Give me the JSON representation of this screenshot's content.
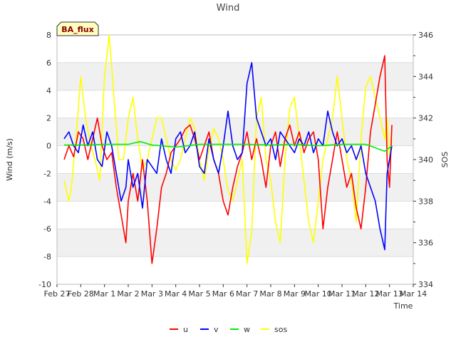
{
  "chart_data": {
    "type": "line",
    "title": "Wind",
    "badge": "BA_flux",
    "xlabel": "Time",
    "ylabel": "Wind (m/s)",
    "y2label": "SOS",
    "x_ticks": [
      "Feb 27",
      "Feb 28",
      "Mar 1",
      "Mar 2",
      "Mar 3",
      "Mar 4",
      "Mar 5",
      "Mar 6",
      "Mar 7",
      "Mar 8",
      "Mar 9",
      "Mar 10",
      "Mar 11",
      "Mar 12",
      "Mar 13",
      "Mar 14"
    ],
    "xlim": [
      0,
      15
    ],
    "ylim": [
      -10,
      8
    ],
    "y_ticks": [
      -10,
      -8,
      -6,
      -4,
      -2,
      0,
      2,
      4,
      6,
      8
    ],
    "y2lim": [
      334,
      346
    ],
    "y2_ticks": [
      334,
      336,
      338,
      340,
      342,
      344,
      346
    ],
    "series": [
      {
        "name": "u",
        "color": "#ff0000",
        "axis": "left",
        "x": [
          0.3,
          0.5,
          0.7,
          0.9,
          1.1,
          1.3,
          1.5,
          1.7,
          1.9,
          2.1,
          2.3,
          2.5,
          2.7,
          2.9,
          3.0,
          3.2,
          3.4,
          3.6,
          3.8,
          4.0,
          4.2,
          4.4,
          4.6,
          4.8,
          5.0,
          5.2,
          5.4,
          5.6,
          5.8,
          6.0,
          6.2,
          6.4,
          6.6,
          6.8,
          7.0,
          7.2,
          7.4,
          7.6,
          7.8,
          8.0,
          8.2,
          8.4,
          8.6,
          8.8,
          9.0,
          9.2,
          9.4,
          9.6,
          9.8,
          10.0,
          10.2,
          10.4,
          10.6,
          10.8,
          11.0,
          11.2,
          11.4,
          11.6,
          11.8,
          12.0,
          12.2,
          12.4,
          12.6,
          12.8,
          13.0,
          13.2,
          13.4,
          13.6,
          13.8,
          13.9,
          14.0,
          14.1
        ],
        "values": [
          -1,
          0,
          -0.8,
          1,
          0.5,
          -1,
          0.5,
          2,
          0,
          -1,
          -0.5,
          -3,
          -5,
          -7,
          -4,
          -2,
          -4,
          -1,
          -4,
          -8.5,
          -6,
          -3,
          -2,
          -0.5,
          0,
          0.5,
          1.2,
          1.5,
          0.5,
          -1,
          0,
          1,
          -1,
          -2,
          -4,
          -5,
          -3,
          -1.5,
          -0.5,
          1,
          -1,
          0.5,
          -1,
          -3,
          0,
          1,
          -1.5,
          0.5,
          1.5,
          0,
          1,
          -0.5,
          0.5,
          1,
          -1,
          -6,
          -3,
          -1,
          1,
          -1,
          -3,
          -2,
          -4.5,
          -6,
          -3,
          1,
          3,
          5,
          6.5,
          -1,
          -3,
          1.5
        ]
      },
      {
        "name": "v",
        "color": "#0000ff",
        "axis": "left",
        "x": [
          0.3,
          0.5,
          0.7,
          0.9,
          1.1,
          1.3,
          1.5,
          1.7,
          1.9,
          2.1,
          2.3,
          2.5,
          2.7,
          2.9,
          3.0,
          3.2,
          3.4,
          3.6,
          3.8,
          4.0,
          4.2,
          4.4,
          4.6,
          4.8,
          5.0,
          5.2,
          5.4,
          5.6,
          5.8,
          6.0,
          6.2,
          6.4,
          6.6,
          6.8,
          7.0,
          7.2,
          7.4,
          7.6,
          7.8,
          8.0,
          8.2,
          8.4,
          8.6,
          8.8,
          9.0,
          9.2,
          9.4,
          9.6,
          9.8,
          10.0,
          10.2,
          10.4,
          10.6,
          10.8,
          11.0,
          11.2,
          11.4,
          11.6,
          11.8,
          12.0,
          12.2,
          12.4,
          12.6,
          12.8,
          13.0,
          13.2,
          13.4,
          13.6,
          13.8,
          13.9,
          14.0,
          14.1
        ],
        "values": [
          0.5,
          1,
          0,
          -0.5,
          1.5,
          0,
          1,
          -1,
          -1.5,
          1,
          0,
          -2,
          -4,
          -3,
          -1,
          -3,
          -2,
          -4.5,
          -1,
          -1.5,
          -2,
          0.5,
          -1,
          -2,
          0.5,
          1,
          -0.5,
          0,
          1,
          -1.5,
          -2,
          0.5,
          -1,
          -2,
          0,
          2.5,
          0,
          -1,
          -0.5,
          4.5,
          6,
          2,
          1,
          0,
          0.5,
          -1,
          1,
          0.5,
          0,
          -0.5,
          0.5,
          0,
          1,
          -0.5,
          0.5,
          0,
          2.5,
          1,
          0,
          0.5,
          -0.5,
          0,
          -1,
          0,
          -2,
          -3,
          -4,
          -6,
          -7.5,
          -2,
          -1,
          0
        ]
      },
      {
        "name": "w",
        "color": "#00ee00",
        "axis": "left",
        "x": [
          0.3,
          1,
          2,
          3,
          3.5,
          4,
          5,
          6,
          7,
          8,
          9,
          10,
          11,
          12,
          13,
          13.8,
          14.1
        ],
        "values": [
          0.05,
          0.05,
          0.1,
          0.1,
          0.3,
          0.05,
          -0.1,
          0.1,
          0.1,
          0.1,
          0.05,
          0.1,
          0,
          0.1,
          0.1,
          -0.4,
          0
        ]
      },
      {
        "name": "sos",
        "color": "#ffff00",
        "axis": "right",
        "x": [
          0.3,
          0.4,
          0.5,
          0.6,
          0.8,
          1.0,
          1.2,
          1.4,
          1.6,
          1.8,
          2.0,
          2.2,
          2.4,
          2.6,
          2.8,
          3.0,
          3.2,
          3.4,
          3.6,
          3.8,
          4.0,
          4.2,
          4.4,
          4.6,
          4.8,
          5.0,
          5.2,
          5.4,
          5.6,
          5.8,
          6.0,
          6.2,
          6.4,
          6.6,
          6.8,
          7.0,
          7.2,
          7.4,
          7.6,
          7.8,
          8.0,
          8.2,
          8.4,
          8.6,
          8.8,
          9.0,
          9.2,
          9.4,
          9.6,
          9.8,
          10.0,
          10.2,
          10.4,
          10.6,
          10.8,
          11.0,
          11.2,
          11.4,
          11.6,
          11.8,
          12.0,
          12.2,
          12.4,
          12.6,
          12.8,
          13.0,
          13.2,
          13.4,
          13.6,
          13.8,
          13.9,
          14.0,
          14.1
        ],
        "values": [
          339,
          338.5,
          338,
          338.6,
          341,
          344,
          342,
          340.8,
          340,
          339,
          344,
          346,
          343,
          340,
          340,
          342,
          343,
          341,
          339.5,
          340,
          341,
          342,
          342,
          341,
          340,
          339.5,
          340,
          341,
          342,
          341.5,
          340,
          339,
          340.5,
          341.5,
          341,
          340,
          338.5,
          338,
          339,
          340,
          335,
          336.5,
          342,
          343,
          340,
          339,
          337,
          336,
          340,
          342.5,
          343,
          341,
          339,
          337,
          336,
          338,
          340,
          341,
          342,
          344,
          342,
          340,
          339,
          337,
          341,
          343.5,
          344,
          343,
          342,
          341,
          342,
          340,
          341
        ]
      }
    ]
  }
}
